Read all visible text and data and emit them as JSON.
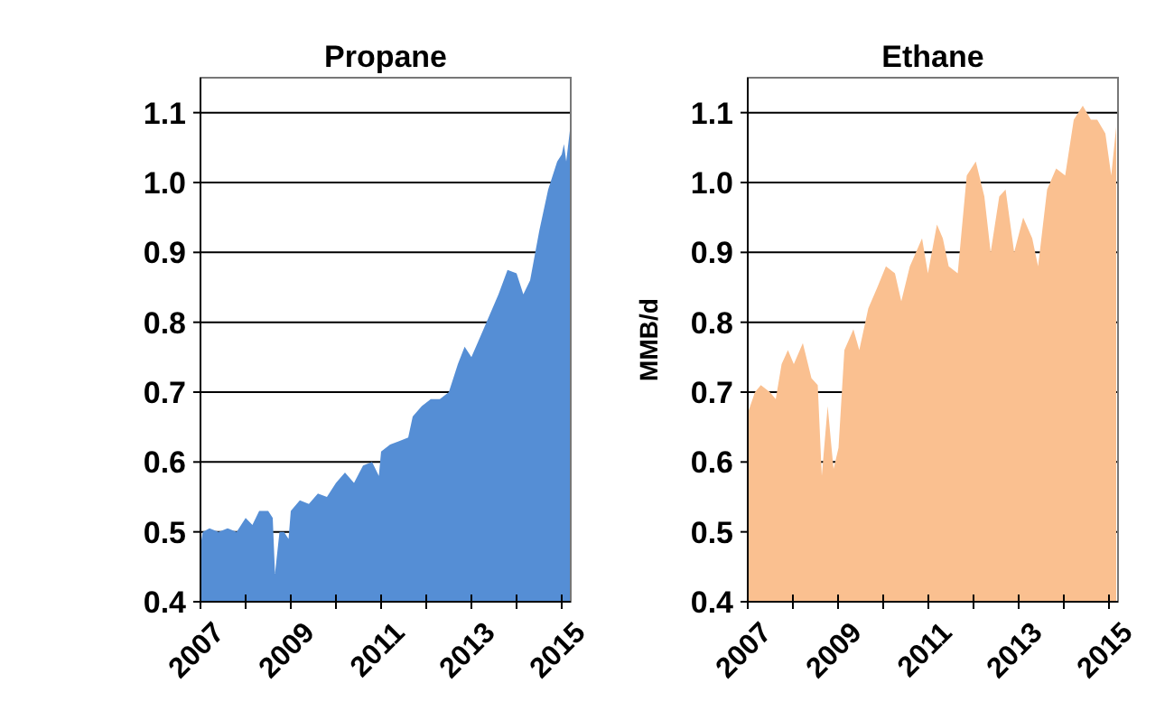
{
  "chart_data": [
    {
      "type": "area",
      "title": "Propane",
      "color": "#558ed5",
      "grid": "y",
      "xlim": [
        2007,
        2015.2
      ],
      "ylim": [
        0.4,
        1.15
      ],
      "xticks": [
        2007,
        {
          "value": 2008,
          "label": null
        },
        2009,
        {
          "value": 2010,
          "label": null
        },
        2011,
        {
          "value": 2012,
          "label": null
        },
        2013,
        {
          "value": 2014,
          "label": null
        },
        2015
      ],
      "yticks": [
        {
          "value": 0.4,
          "label": "0.4"
        },
        {
          "value": 0.5,
          "label": "0.5"
        },
        {
          "value": 0.6,
          "label": "0.6"
        },
        {
          "value": 0.7,
          "label": "0.7"
        },
        {
          "value": 0.8,
          "label": "0.8"
        },
        {
          "value": 0.9,
          "label": "0.9"
        },
        {
          "value": 1.0,
          "label": "1.0"
        },
        {
          "value": 1.1,
          "label": "1.1"
        }
      ],
      "x": [
        2007.0,
        2007.05,
        2007.2,
        2007.4,
        2007.6,
        2007.8,
        2008.0,
        2008.15,
        2008.3,
        2008.5,
        2008.6,
        2008.65,
        2008.75,
        2008.85,
        2008.95,
        2009.0,
        2009.2,
        2009.4,
        2009.6,
        2009.8,
        2010.0,
        2010.2,
        2010.4,
        2010.6,
        2010.8,
        2010.95,
        2011.0,
        2011.2,
        2011.4,
        2011.6,
        2011.7,
        2011.9,
        2012.1,
        2012.3,
        2012.5,
        2012.7,
        2012.85,
        2013.0,
        2013.2,
        2013.4,
        2013.6,
        2013.8,
        2014.0,
        2014.15,
        2014.3,
        2014.5,
        2014.7,
        2014.9,
        2015.0,
        2015.05,
        2015.1,
        2015.2
      ],
      "values": [
        0.48,
        0.5,
        0.505,
        0.5,
        0.505,
        0.5,
        0.52,
        0.51,
        0.53,
        0.53,
        0.52,
        0.44,
        0.5,
        0.5,
        0.49,
        0.53,
        0.545,
        0.54,
        0.555,
        0.55,
        0.57,
        0.585,
        0.57,
        0.595,
        0.6,
        0.58,
        0.615,
        0.625,
        0.63,
        0.635,
        0.665,
        0.68,
        0.69,
        0.69,
        0.7,
        0.74,
        0.765,
        0.75,
        0.78,
        0.81,
        0.84,
        0.875,
        0.87,
        0.84,
        0.86,
        0.93,
        0.99,
        1.03,
        1.04,
        1.055,
        1.03,
        1.085
      ]
    },
    {
      "type": "area",
      "title": "Ethane",
      "ylabel": "MMB/d",
      "color": "#fac090",
      "grid": "y",
      "xlim": [
        2007,
        2015.2
      ],
      "ylim": [
        0.4,
        1.15
      ],
      "xticks": [
        2007,
        {
          "value": 2008,
          "label": null
        },
        2009,
        {
          "value": 2010,
          "label": null
        },
        2011,
        {
          "value": 2012,
          "label": null
        },
        2013,
        {
          "value": 2014,
          "label": null
        },
        2015
      ],
      "yticks": [
        {
          "value": 0.4,
          "label": "0.4"
        },
        {
          "value": 0.5,
          "label": "0.5"
        },
        {
          "value": 0.6,
          "label": "0.6"
        },
        {
          "value": 0.7,
          "label": "0.7"
        },
        {
          "value": 0.8,
          "label": "0.8"
        },
        {
          "value": 0.9,
          "label": "0.9"
        },
        {
          "value": 1.0,
          "label": "1.0"
        },
        {
          "value": 1.1,
          "label": "1.1"
        }
      ],
      "x": [
        2007.0,
        2007.16,
        2007.29,
        2007.49,
        2007.62,
        2007.75,
        2007.89,
        2008.02,
        2008.22,
        2008.41,
        2008.55,
        2008.64,
        2008.77,
        2008.9,
        2009.01,
        2009.14,
        2009.34,
        2009.47,
        2009.67,
        2009.87,
        2010.06,
        2010.26,
        2010.4,
        2010.59,
        2010.86,
        2010.99,
        2011.19,
        2011.32,
        2011.45,
        2011.65,
        2011.85,
        2012.05,
        2012.24,
        2012.38,
        2012.57,
        2012.71,
        2012.9,
        2013.1,
        2013.3,
        2013.43,
        2013.63,
        2013.83,
        2014.03,
        2014.22,
        2014.42,
        2014.6,
        2014.74,
        2014.92,
        2015.05,
        2015.16
      ],
      "values": [
        0.67,
        0.7,
        0.71,
        0.7,
        0.69,
        0.74,
        0.76,
        0.74,
        0.77,
        0.72,
        0.71,
        0.58,
        0.68,
        0.59,
        0.62,
        0.76,
        0.79,
        0.76,
        0.82,
        0.85,
        0.88,
        0.87,
        0.83,
        0.88,
        0.92,
        0.87,
        0.94,
        0.92,
        0.88,
        0.87,
        1.01,
        1.03,
        0.98,
        0.9,
        0.98,
        0.99,
        0.9,
        0.95,
        0.92,
        0.88,
        0.99,
        1.02,
        1.01,
        1.09,
        1.11,
        1.09,
        1.09,
        1.07,
        1.01,
        1.08
      ]
    }
  ]
}
